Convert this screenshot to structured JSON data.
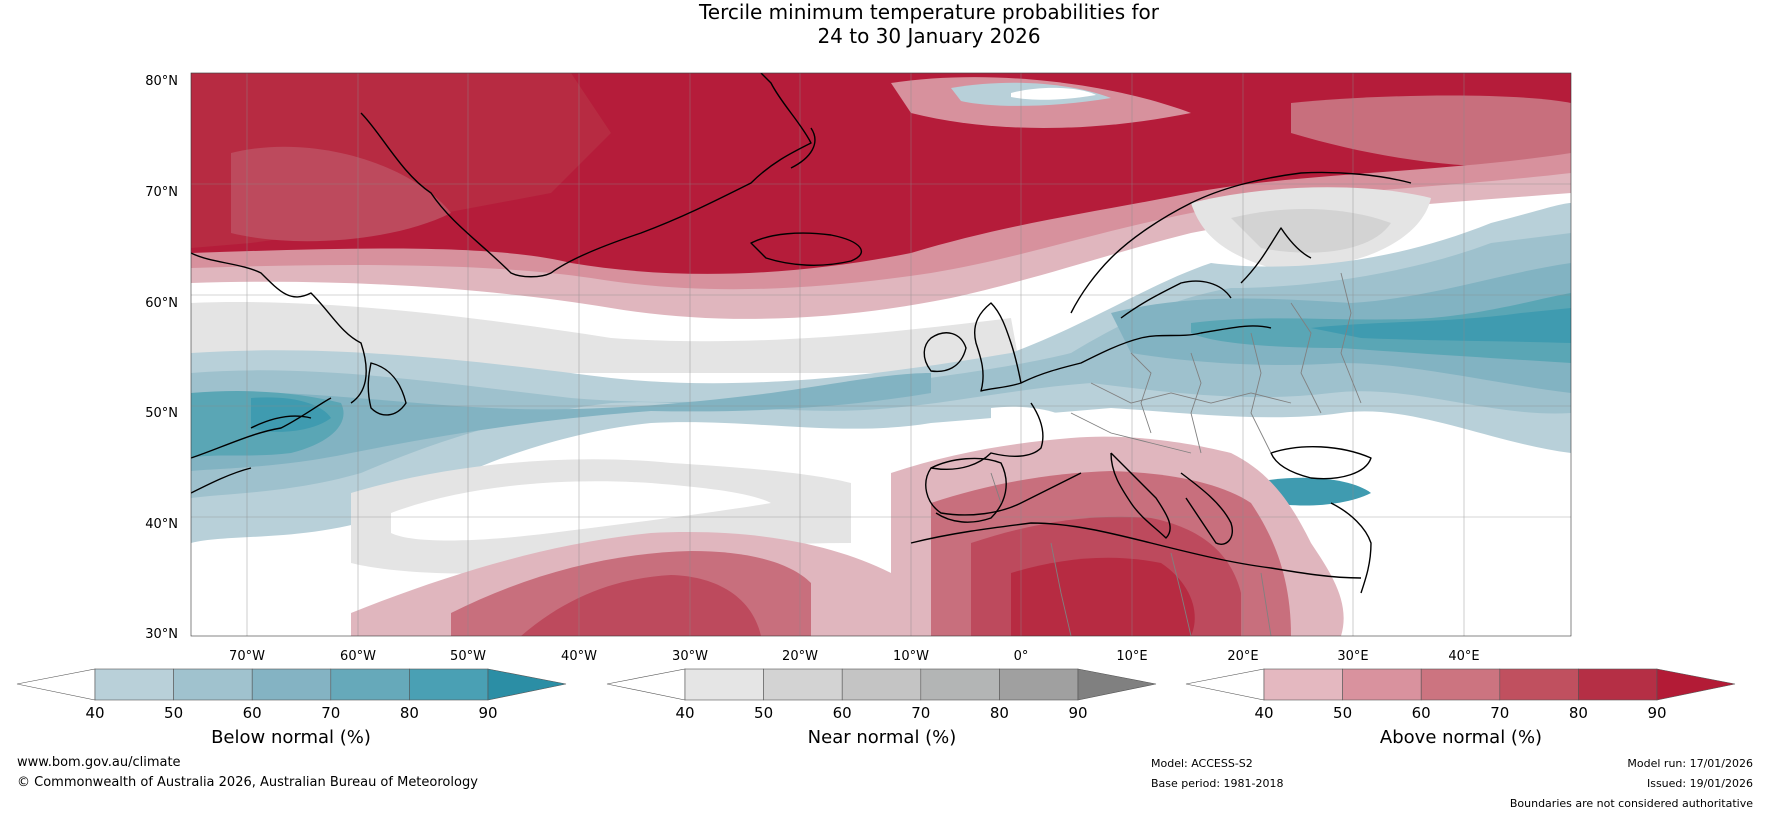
{
  "title": {
    "line1": "Tercile minimum temperature probabilities for",
    "line2": "24 to 30 January 2026"
  },
  "map": {
    "latitude_labels": [
      "80°N",
      "70°N",
      "60°N",
      "50°N",
      "40°N",
      "30°N"
    ],
    "longitude_labels": [
      "70°W",
      "60°W",
      "50°W",
      "40°W",
      "30°W",
      "20°W",
      "10°W",
      "0°",
      "10°E",
      "20°E",
      "30°E",
      "40°E"
    ],
    "colors": {
      "ocean_above_strong": "#b51c3a",
      "above_1": "#e0b6be",
      "above_2": "#d7919d",
      "above_3": "#c86f7d",
      "above_4": "#bd4a5d",
      "above_5": "#b72b42",
      "below_1": "#b8d0d9",
      "below_2": "#9ec1cd",
      "below_3": "#82b3c2",
      "below_4": "#5aa6b5",
      "below_5": "#3f9bb0",
      "near_1": "#e4e4e4",
      "near_2": "#d3d3d3",
      "coast": "#000000",
      "border": "#808080"
    }
  },
  "colorbars": [
    {
      "label": "Below normal (%)",
      "ticks": [
        "40",
        "50",
        "60",
        "70",
        "80",
        "90"
      ],
      "colors": [
        "#ffffff",
        "#b9d0d9",
        "#a0c2ce",
        "#84b3c3",
        "#66a9ba",
        "#4aa0b4",
        "#2b8ea5"
      ]
    },
    {
      "label": "Near normal (%)",
      "ticks": [
        "40",
        "50",
        "60",
        "70",
        "80",
        "90"
      ],
      "colors": [
        "#ffffff",
        "#e5e5e5",
        "#d3d3d3",
        "#c4c4c4",
        "#b3b5b5",
        "#a0a0a0",
        "#808080"
      ]
    },
    {
      "label": "Above normal (%)",
      "ticks": [
        "40",
        "50",
        "60",
        "70",
        "80",
        "90"
      ],
      "colors": [
        "#ffffff",
        "#e4b8c0",
        "#d9929e",
        "#cc7480",
        "#c0505f",
        "#b52f45",
        "#b31b36"
      ]
    }
  ],
  "footer": {
    "website": "www.bom.gov.au/climate",
    "copyright": "© Commonwealth of Australia 2026, Australian Bureau of Meteorology",
    "model": "Model: ACCESS-S2",
    "base_period": "Base period: 1981-2018",
    "model_run": "Model run: 17/01/2026",
    "issued": "Issued: 19/01/2026",
    "disclaimer": "Boundaries are not considered authoritative"
  }
}
